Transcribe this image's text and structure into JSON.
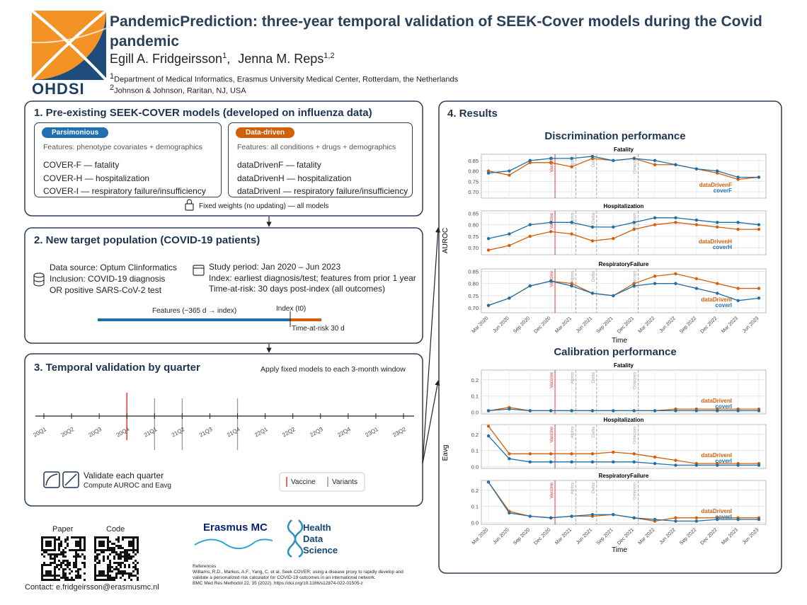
{
  "header": {
    "logo_text": "OHDSI",
    "title": "PandemicPrediction: three-year temporal validation of SEEK-Cover models during the Covid pandemic",
    "authors": [
      {
        "name": "Egill A. Fridgeirsson",
        "affiliation": "1"
      },
      {
        "name": "Jenna M. Reps",
        "affiliation": "1,2"
      }
    ],
    "affiliations": [
      {
        "mark": "1",
        "text": "Department of Medical Informatics, Erasmus University Medical Center, Rotterdam, the Netherlands"
      },
      {
        "mark": "2",
        "text": "Johnson & Johnson, Raritan, NJ, USA"
      }
    ]
  },
  "section1": {
    "title": "1. Pre-existing SEEK-COVER models (developed on influenza data)",
    "groups": [
      {
        "tag": "Parsimonious",
        "features": "Features: phenotype covariates + demographics",
        "models": [
          "COVER-F — fatality",
          "COVER-H — hospitalization",
          "COVER-I — respiratory failure/insufficiency"
        ]
      },
      {
        "tag": "Data-driven",
        "features": "Features: all conditions + drugs + demographics",
        "models": [
          "dataDrivenF — fatality",
          "dataDrivenH — hospitalization",
          "dataDrivenI — respiratory failure/insufficiency"
        ]
      }
    ],
    "note": "Fixed weights (no updating) — all models"
  },
  "section2": {
    "title": "2. New target population (COVID-19 patients)",
    "population": [
      "Data source: Optum Clinformatics",
      "Inclusion: COVID-19 diagnosis",
      "OR positive SARS-CoV-2 test"
    ],
    "design": [
      "Study period: Jan 2020 – Jun 2023",
      "Index: earliest diagnosis/test; features from prior 1 year",
      "Time-at-risk: 30 days post-index (all outcomes)"
    ],
    "timeline": {
      "features": "Features (−365 d → index)",
      "index": "Index (t0)",
      "risk": "Time-at-risk 30 d"
    }
  },
  "section3": {
    "title": "3. Temporal validation by quarter",
    "subtitle": "Apply fixed models to each 3-month window",
    "quarters": [
      "20Q1",
      "20Q2",
      "20Q3",
      "20Q4",
      "21Q1",
      "21Q2",
      "21Q3",
      "21Q4",
      "22Q1",
      "22Q2",
      "22Q3",
      "22Q4",
      "23Q1",
      "23Q2"
    ],
    "vaccine_at": "20Q4",
    "variants_at": [
      "21Q1",
      "21Q2",
      "21Q4"
    ],
    "validate_title": "Validate each quarter",
    "validate_text": "Compute AUROC and Eavg",
    "legend": {
      "vaccine": "Vaccine",
      "variants": "Variants"
    }
  },
  "section4": {
    "title": "4. Results",
    "discrimination": {
      "type": "line",
      "title": "Discrimination performance",
      "y_label": "AUROC",
      "x_label": "Time",
      "x": [
        "Mar 2020",
        "Jun 2020",
        "Sep 2020",
        "Dec 2020",
        "Mar 2021",
        "Jun 2021",
        "Sep 2021",
        "Dec 2021",
        "Mar 2022",
        "Jun 2022",
        "Sep 2022",
        "Dec 2022",
        "Mar 2023",
        "Jun 2023"
      ],
      "events": [
        {
          "label": "Vaccine",
          "at": "Dec 2020"
        },
        {
          "label": "Alpha",
          "at": "Mar 2021"
        },
        {
          "label": "Delta",
          "at": "Jun 2021"
        },
        {
          "label": "Omicron",
          "at": "Dec 2021"
        }
      ],
      "panels": [
        {
          "title": "Fatality",
          "ylim": [
            0.67,
            0.88
          ],
          "yticks": [
            {
              "value": 0.7,
              "label": "0.70"
            },
            0.75,
            {
              "value": 0.8,
              "label": "0.80"
            },
            0.85
          ],
          "series": [
            {
              "name": "dataDrivenF",
              "color": "#d45f0a",
              "values": [
                0.8,
                0.78,
                0.84,
                0.84,
                0.82,
                0.86,
                0.85,
                0.86,
                0.83,
                0.83,
                0.81,
                0.79,
                0.76,
                0.77
              ]
            },
            {
              "name": "coverF",
              "color": "#1f6fa8",
              "values": [
                0.79,
                0.8,
                0.85,
                0.86,
                0.86,
                0.87,
                0.85,
                0.86,
                0.85,
                0.83,
                0.81,
                0.8,
                0.77,
                0.77
              ]
            }
          ]
        },
        {
          "title": "Hospitalization",
          "ylim": [
            0.67,
            0.86
          ],
          "yticks": [
            {
              "value": 0.7,
              "label": "0.70"
            },
            0.75,
            {
              "value": 0.8,
              "label": "0.80"
            },
            0.85
          ],
          "series": [
            {
              "name": "dataDrivenH",
              "color": "#d45f0a",
              "values": [
                0.69,
                0.71,
                0.75,
                0.77,
                0.76,
                0.73,
                0.74,
                0.78,
                0.8,
                0.81,
                0.8,
                0.79,
                0.78,
                0.78
              ]
            },
            {
              "name": "coverH",
              "color": "#1f6fa8",
              "values": [
                0.74,
                0.76,
                0.8,
                0.81,
                0.81,
                0.79,
                0.79,
                0.81,
                0.83,
                0.83,
                0.82,
                0.81,
                0.81,
                0.8
              ]
            }
          ]
        },
        {
          "title": "RespiratoryFailure",
          "ylim": [
            0.68,
            0.86
          ],
          "yticks": [
            {
              "value": 0.7,
              "label": "0.70"
            },
            0.75,
            {
              "value": 0.8,
              "label": "0.80"
            },
            0.85
          ],
          "series": [
            {
              "name": "dataDrivenI",
              "color": "#d45f0a",
              "values": [
                0.71,
                0.74,
                0.79,
                0.81,
                0.8,
                0.76,
                0.75,
                0.8,
                0.83,
                0.84,
                0.82,
                0.8,
                0.78,
                0.78
              ]
            },
            {
              "name": "coverI",
              "color": "#1f6fa8",
              "values": [
                0.71,
                0.74,
                0.79,
                0.81,
                0.79,
                0.76,
                0.75,
                0.79,
                0.8,
                0.8,
                0.78,
                0.76,
                0.73,
                0.74
              ]
            }
          ]
        }
      ]
    },
    "calibration": {
      "type": "line",
      "title": "Calibration performance",
      "y_label": "Eavg",
      "x_label": "Time",
      "x": [
        "Mar 2020",
        "Jun 2020",
        "Sep 2020",
        "Dec 2020",
        "Mar 2021",
        "Jun 2021",
        "Sep 2021",
        "Dec 2021",
        "Mar 2022",
        "Jun 2022",
        "Sep 2022",
        "Dec 2022",
        "Mar 2023",
        "Jun 2023"
      ],
      "events": [
        {
          "label": "Vaccine",
          "at": "Dec 2020"
        },
        {
          "label": "Alpha",
          "at": "Mar 2021"
        },
        {
          "label": "Delta",
          "at": "Jun 2021"
        },
        {
          "label": "Omicron",
          "at": "Dec 2021"
        }
      ],
      "panels": [
        {
          "title": "Fatality",
          "ylim": [
            -0.01,
            0.26
          ],
          "yticks": [
            {
              "value": 0,
              "label": "0.0"
            },
            0.1,
            0.2
          ],
          "series": [
            {
              "name": "dataDrivenI",
              "color": "#d45f0a",
              "values": [
                0.01,
                0.03,
                0.01,
                0.01,
                0.01,
                0.01,
                0.01,
                0.01,
                0.01,
                0.02,
                0.02,
                0.02,
                0.02,
                0.02
              ]
            },
            {
              "name": "coverI",
              "color": "#1f6fa8",
              "values": [
                0.01,
                0.02,
                0.01,
                0.01,
                0.01,
                0.01,
                0.01,
                0.01,
                0.01,
                0.01,
                0.01,
                0.01,
                0.01,
                0.01
              ]
            }
          ]
        },
        {
          "title": "Hospitalization",
          "ylim": [
            -0.01,
            0.26
          ],
          "yticks": [
            {
              "value": 0,
              "label": "0.0"
            },
            0.1,
            0.2
          ],
          "series": [
            {
              "name": "dataDrivenI",
              "color": "#d45f0a",
              "values": [
                0.25,
                0.08,
                0.08,
                0.08,
                0.08,
                0.08,
                0.09,
                0.08,
                0.06,
                0.04,
                0.02,
                0.02,
                0.02,
                0.02
              ]
            },
            {
              "name": "coverI",
              "color": "#1f6fa8",
              "values": [
                0.19,
                0.05,
                0.03,
                0.03,
                0.03,
                0.03,
                0.03,
                0.03,
                0.02,
                0.01,
                0.01,
                0.01,
                0.01,
                0.01
              ]
            }
          ]
        },
        {
          "title": "RespiratoryFailure",
          "ylim": [
            -0.01,
            0.26
          ],
          "yticks": [
            {
              "value": 0,
              "label": "0.0"
            },
            0.1,
            0.2
          ],
          "series": [
            {
              "name": "dataDrivenI",
              "color": "#d45f0a",
              "values": [
                0.25,
                0.07,
                0.04,
                0.03,
                0.04,
                0.04,
                0.05,
                0.03,
                0.01,
                0.03,
                0.03,
                0.03,
                0.03,
                0.03
              ]
            },
            {
              "name": "coverI",
              "color": "#1f6fa8",
              "values": [
                0.25,
                0.06,
                0.04,
                0.03,
                0.04,
                0.05,
                0.05,
                0.03,
                0.02,
                0.01,
                0.01,
                0.02,
                0.02,
                0.02
              ]
            }
          ]
        }
      ]
    }
  },
  "footer": {
    "paper": "Paper",
    "code": "Code",
    "contact": "Contact: e.fridgeirsson@erasmusmc.nl",
    "erasmus": "Erasmus MC",
    "hds": [
      "Health",
      "Data",
      "Science"
    ],
    "references_title": "References",
    "references": [
      "Williams, R.D., Markus, A.F., Yang, C. et al. Seek COVER: using a disease proxy to rapidly develop and",
      "validate a personalized risk calculator for COVID-19 outcomes in an international network.",
      "BMC Med Res Methodol 22, 35 (2022). https://doi.org/10.1186/s12874-022-01505-z"
    ]
  }
}
